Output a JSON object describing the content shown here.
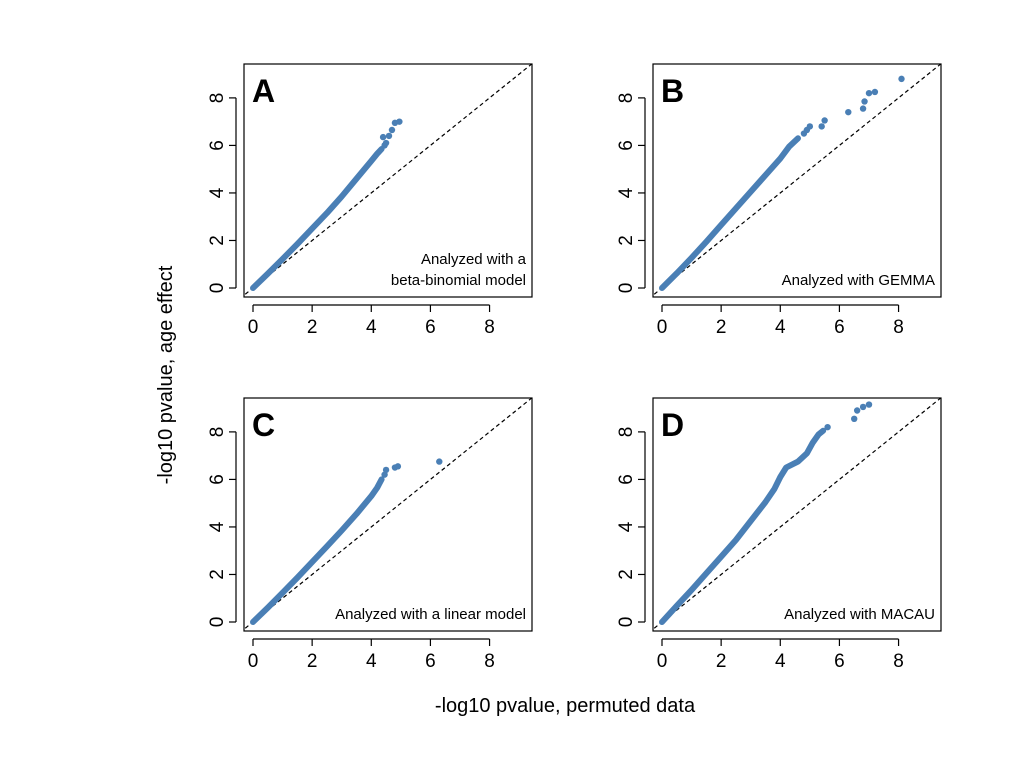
{
  "figure": {
    "ylabel": "-log10 pvalue, age effect",
    "xlabel": "-log10 pvalue, permuted data"
  },
  "style": {
    "point_color": "#4a7fb5",
    "diagonal_color": "#000000"
  },
  "chart_data": [
    {
      "type": "scatter",
      "panel": "A",
      "annotation": [
        "Analyzed with a",
        "beta-binomial model"
      ],
      "xlim": [
        0,
        9.3
      ],
      "ylim": [
        0,
        9.3
      ],
      "xticks": [
        0,
        2,
        4,
        6,
        8
      ],
      "yticks": [
        0,
        2,
        4,
        6,
        8
      ],
      "reference_line": "y = x (dashed)",
      "bulk_curve": [
        [
          0,
          0
        ],
        [
          0.5,
          0.6
        ],
        [
          1,
          1.22
        ],
        [
          1.5,
          1.85
        ],
        [
          2,
          2.5
        ],
        [
          2.5,
          3.15
        ],
        [
          3,
          3.85
        ],
        [
          3.5,
          4.6
        ],
        [
          4,
          5.35
        ],
        [
          4.2,
          5.65
        ],
        [
          4.35,
          5.85
        ]
      ],
      "points": [
        [
          4.45,
          6.0
        ],
        [
          4.5,
          6.1
        ],
        [
          4.4,
          6.35
        ],
        [
          4.6,
          6.4
        ],
        [
          4.7,
          6.65
        ],
        [
          4.8,
          6.95
        ],
        [
          4.95,
          7.0
        ]
      ]
    },
    {
      "type": "scatter",
      "panel": "B",
      "annotation": [
        "Analyzed with GEMMA"
      ],
      "xlim": [
        0,
        9.3
      ],
      "ylim": [
        0,
        9.3
      ],
      "xticks": [
        0,
        2,
        4,
        6,
        8
      ],
      "yticks": [
        0,
        2,
        4,
        6,
        8
      ],
      "reference_line": "y = x (dashed)",
      "bulk_curve": [
        [
          0,
          0
        ],
        [
          0.5,
          0.62
        ],
        [
          1,
          1.27
        ],
        [
          1.5,
          1.95
        ],
        [
          2,
          2.65
        ],
        [
          2.5,
          3.35
        ],
        [
          3,
          4.05
        ],
        [
          3.5,
          4.75
        ],
        [
          4,
          5.45
        ],
        [
          4.3,
          5.95
        ],
        [
          4.6,
          6.3
        ]
      ],
      "points": [
        [
          4.8,
          6.5
        ],
        [
          4.9,
          6.65
        ],
        [
          5.0,
          6.8
        ],
        [
          5.4,
          6.8
        ],
        [
          5.5,
          7.05
        ],
        [
          6.3,
          7.4
        ],
        [
          6.8,
          7.55
        ],
        [
          6.85,
          7.85
        ],
        [
          7.0,
          8.2
        ],
        [
          7.2,
          8.25
        ],
        [
          8.1,
          8.8
        ]
      ]
    },
    {
      "type": "scatter",
      "panel": "C",
      "annotation": [
        "Analyzed with a linear model"
      ],
      "xlim": [
        0,
        9.3
      ],
      "ylim": [
        0,
        9.3
      ],
      "xticks": [
        0,
        2,
        4,
        6,
        8
      ],
      "yticks": [
        0,
        2,
        4,
        6,
        8
      ],
      "reference_line": "y = x (dashed)",
      "bulk_curve": [
        [
          0,
          0
        ],
        [
          0.5,
          0.6
        ],
        [
          1,
          1.23
        ],
        [
          1.5,
          1.87
        ],
        [
          2,
          2.52
        ],
        [
          2.5,
          3.18
        ],
        [
          3,
          3.85
        ],
        [
          3.5,
          4.55
        ],
        [
          4,
          5.3
        ],
        [
          4.2,
          5.65
        ],
        [
          4.35,
          6.0
        ]
      ],
      "points": [
        [
          4.45,
          6.2
        ],
        [
          4.5,
          6.4
        ],
        [
          4.8,
          6.5
        ],
        [
          4.9,
          6.55
        ],
        [
          6.3,
          6.75
        ]
      ]
    },
    {
      "type": "scatter",
      "panel": "D",
      "annotation": [
        "Analyzed with MACAU"
      ],
      "xlim": [
        0,
        9.3
      ],
      "ylim": [
        0,
        9.3
      ],
      "xticks": [
        0,
        2,
        4,
        6,
        8
      ],
      "yticks": [
        0,
        2,
        4,
        6,
        8
      ],
      "reference_line": "y = x (dashed)",
      "bulk_curve": [
        [
          0,
          0
        ],
        [
          0.5,
          0.68
        ],
        [
          1,
          1.35
        ],
        [
          1.5,
          2.05
        ],
        [
          2,
          2.75
        ],
        [
          2.5,
          3.45
        ],
        [
          3,
          4.25
        ],
        [
          3.5,
          5.05
        ],
        [
          3.8,
          5.6
        ],
        [
          4,
          6.1
        ],
        [
          4.2,
          6.5
        ],
        [
          4.6,
          6.75
        ],
        [
          4.9,
          7.1
        ],
        [
          5.1,
          7.55
        ],
        [
          5.3,
          7.9
        ],
        [
          5.45,
          8.05
        ]
      ],
      "points": [
        [
          5.6,
          8.2
        ],
        [
          6.5,
          8.55
        ],
        [
          6.6,
          8.9
        ],
        [
          6.8,
          9.05
        ],
        [
          7.0,
          9.15
        ]
      ]
    }
  ]
}
